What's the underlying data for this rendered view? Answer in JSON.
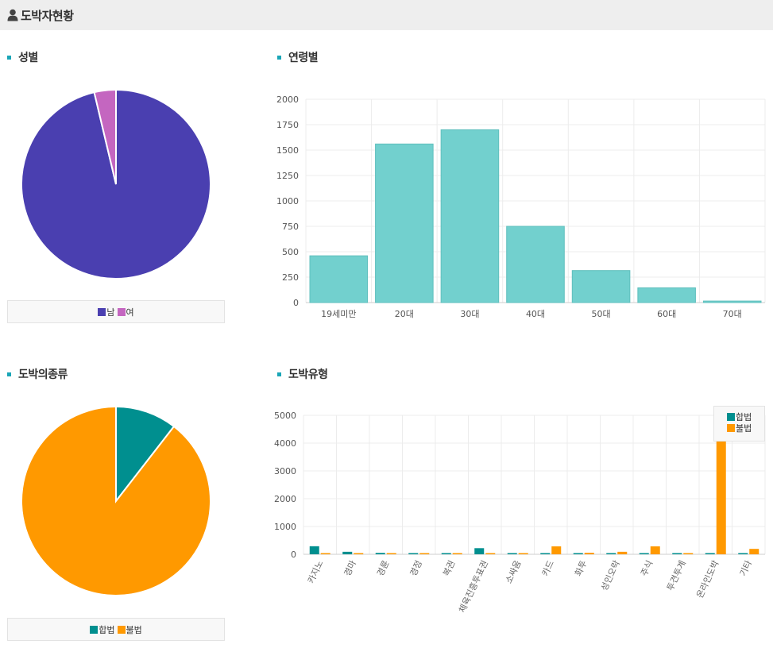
{
  "header": {
    "title": "도박자현황",
    "icon": "person-icon"
  },
  "sections": {
    "gender": "성별",
    "age": "연령별",
    "legality": "도박의종류",
    "types": "도박유형"
  },
  "colors": {
    "male": "#4a3fb0",
    "female": "#c466c0",
    "teal_bar": "#72d0ce",
    "legal": "#008f8f",
    "illegal": "#ff9900",
    "accent": "#1aa6b7"
  },
  "chart_data": [
    {
      "type": "pie",
      "labels": [
        "남",
        "여"
      ],
      "values": [
        96.3,
        3.7
      ],
      "colors": [
        "#4a3fb0",
        "#c466c0"
      ],
      "legend": "bottom"
    },
    {
      "type": "bar",
      "categories": [
        "19세미만",
        "20대",
        "30대",
        "40대",
        "50대",
        "60대",
        "70대"
      ],
      "values": [
        460,
        1560,
        1700,
        750,
        315,
        145,
        15
      ],
      "ylim": [
        0,
        2000
      ],
      "yticks": [
        0,
        250,
        500,
        750,
        1000,
        1250,
        1500,
        1750,
        2000
      ],
      "grid": true,
      "color": "#72d0ce"
    },
    {
      "type": "pie",
      "labels": [
        "합법",
        "불법"
      ],
      "values": [
        10.5,
        89.5
      ],
      "colors": [
        "#008f8f",
        "#ff9900"
      ],
      "legend": "bottom"
    },
    {
      "type": "bar",
      "categories": [
        "카지노",
        "경마",
        "경륜",
        "경정",
        "복권",
        "체육진흥투표권",
        "소싸움",
        "카드",
        "화투",
        "성인오락",
        "주식",
        "투견투계",
        "온라인도박",
        "기타"
      ],
      "series": [
        {
          "name": "합법",
          "values": [
            290,
            90,
            50,
            20,
            30,
            220,
            10,
            25,
            25,
            20,
            25,
            20,
            25,
            20
          ],
          "color": "#008f8f"
        },
        {
          "name": "불법",
          "values": [
            30,
            30,
            30,
            25,
            25,
            30,
            25,
            285,
            55,
            90,
            285,
            20,
            4950,
            195
          ],
          "color": "#ff9900"
        }
      ],
      "ylim": [
        0,
        5000
      ],
      "yticks": [
        0,
        1000,
        2000,
        3000,
        4000,
        5000
      ],
      "grid": true,
      "legend": "top-right"
    }
  ]
}
